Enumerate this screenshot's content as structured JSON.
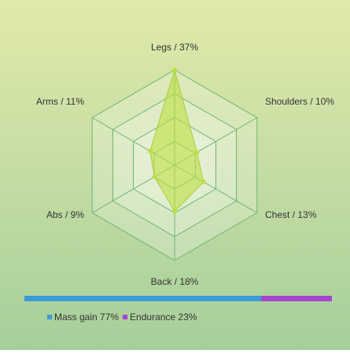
{
  "chart_data": [
    {
      "type": "radar",
      "labels": [
        "Legs / 37%",
        "Shoulders / 10%",
        "Chest / 13%",
        "Back / 18%",
        "Abs / 9%",
        "Arms / 11%"
      ],
      "values": [
        37,
        10,
        13,
        18,
        9,
        11
      ],
      "rlim": [
        0,
        37
      ],
      "color": "#bde040"
    },
    {
      "type": "stacked-bar",
      "series": [
        {
          "name": "Mass gain 77%",
          "color": "#3a9bd6",
          "values": [
            77
          ]
        },
        {
          "name": "Endurance 23%",
          "color": "#a545d0",
          "values": [
            23
          ]
        }
      ],
      "xlim": [
        0,
        100
      ]
    }
  ]
}
